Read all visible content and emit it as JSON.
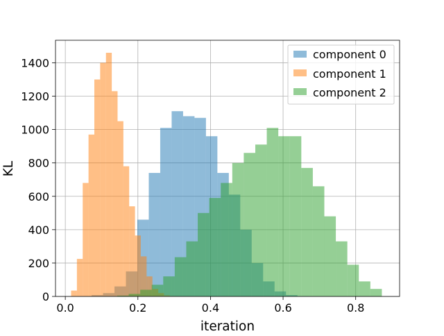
{
  "chart_data": {
    "type": "bar",
    "subtype": "overlapping histogram",
    "title": "",
    "xlabel": "iteration",
    "ylabel": "KL",
    "xlim": [
      -0.027,
      0.921
    ],
    "ylim": [
      0,
      1535
    ],
    "xticks": [
      0.0,
      0.2,
      0.4,
      0.6,
      0.8
    ],
    "xtick_labels": [
      "0.0",
      "0.2",
      "0.4",
      "0.6",
      "0.8"
    ],
    "yticks": [
      0,
      200,
      400,
      600,
      800,
      1000,
      1200,
      1400
    ],
    "ytick_labels": [
      "0",
      "200",
      "400",
      "600",
      "800",
      "1000",
      "1200",
      "1400"
    ],
    "grid": true,
    "legend_position": "top-right",
    "series": [
      {
        "name": "component 0",
        "color": "#1f77b4",
        "opacity": 0.5,
        "bin_width": 0.0315,
        "x_start": 0.041,
        "values": [
          2,
          8,
          20,
          60,
          150,
          460,
          740,
          1010,
          1110,
          1080,
          1070,
          960,
          740,
          610,
          400,
          200,
          90,
          30,
          8,
          2
        ]
      },
      {
        "name": "component 1",
        "color": "#ff7f0e",
        "opacity": 0.5,
        "bin_width": 0.016,
        "x_start": 0.016,
        "values": [
          35,
          225,
          680,
          970,
          1300,
          1400,
          1460,
          1230,
          1050,
          780,
          540,
          365,
          240,
          120,
          45,
          20,
          6,
          2
        ]
      },
      {
        "name": "component 2",
        "color": "#2ca02c",
        "opacity": 0.5,
        "bin_width": 0.0317,
        "x_start": 0.143,
        "values": [
          5,
          15,
          40,
          70,
          120,
          235,
          330,
          500,
          590,
          680,
          800,
          860,
          910,
          1010,
          960,
          960,
          770,
          660,
          480,
          330,
          190,
          90,
          45
        ]
      }
    ]
  }
}
